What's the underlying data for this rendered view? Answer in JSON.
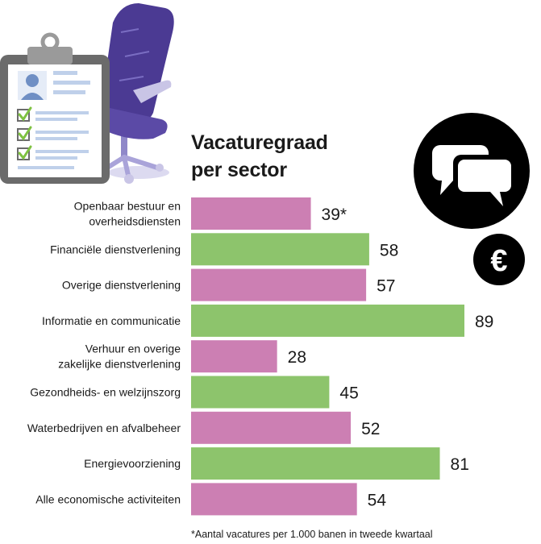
{
  "chart_data": {
    "type": "bar",
    "orientation": "horizontal",
    "title": "Vacaturegraad per sector",
    "title_lines": [
      "Vacaturegraad",
      "per sector"
    ],
    "categories": [
      [
        "Openbaar bestuur en",
        "overheidsdiensten"
      ],
      [
        "Financiële dienstverlening"
      ],
      [
        "Overige dienstverlening"
      ],
      [
        "Informatie en communicatie"
      ],
      [
        "Verhuur en overige",
        "zakelijke dienstverlening"
      ],
      [
        "Gezondheids- en welzijnszorg"
      ],
      [
        "Waterbedrijven en afvalbeheer"
      ],
      [
        "Energievoorziening"
      ],
      [
        "Alle economische activiteiten"
      ]
    ],
    "values": [
      39,
      58,
      57,
      89,
      28,
      45,
      52,
      81,
      54
    ],
    "value_labels": [
      "39*",
      "58",
      "57",
      "89",
      "28",
      "45",
      "52",
      "81",
      "54"
    ],
    "xlim": [
      0,
      89
    ],
    "colors": [
      "#cc7fb3",
      "#8dc46c"
    ],
    "grid": false,
    "legend": "none",
    "footnote": "*Aantal vacatures per 1.000 banen in tweede kwartaal"
  },
  "illustration": {
    "icons": [
      "clipboard-icon",
      "office-chair-icon",
      "speech-bubbles-icon",
      "euro-icon"
    ],
    "colors": {
      "chair": "#4b3a93",
      "chair_light": "#a9a3d9",
      "clipboard": "#6b6b6b",
      "check": "#7fc241",
      "paper_lines": "#bfd0ea",
      "badge": "#000000"
    },
    "euro_symbol": "€"
  }
}
